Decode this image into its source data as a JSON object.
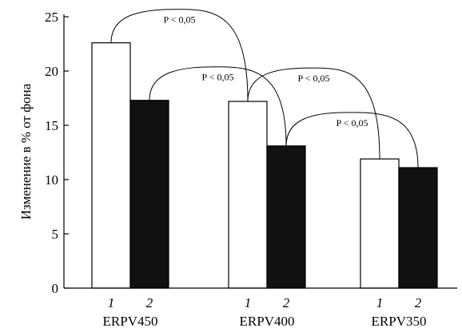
{
  "chart_data": {
    "type": "bar",
    "title": "",
    "xlabel": "",
    "ylabel": "Изменение в % от фона",
    "ylim": [
      0,
      25
    ],
    "yticks": [
      0,
      5,
      10,
      15,
      20,
      25
    ],
    "grid": false,
    "legend": "none",
    "categories": [
      "ERPV450",
      "ERPV400",
      "ERPV350"
    ],
    "sub_labels": [
      "1",
      "2"
    ],
    "series": [
      {
        "values": [
          22.6,
          17.2,
          11.9
        ],
        "color": "#ffffff"
      },
      {
        "values": [
          17.3,
          13.1,
          11.1
        ],
        "color": "#111111"
      }
    ],
    "annotations": [
      {
        "text": "P < 0,05",
        "from": {
          "category": 0,
          "series": 0
        },
        "to": {
          "category": 1,
          "series": 0
        }
      },
      {
        "text": "P < 0,05",
        "from": {
          "category": 0,
          "series": 1
        },
        "to": {
          "category": 1,
          "series": 1
        }
      },
      {
        "text": "P < 0,05",
        "from": {
          "category": 1,
          "series": 0
        },
        "to": {
          "category": 2,
          "series": 0
        }
      },
      {
        "text": "P < 0,05",
        "from": {
          "category": 1,
          "series": 1
        },
        "to": {
          "category": 2,
          "series": 1
        }
      }
    ]
  }
}
